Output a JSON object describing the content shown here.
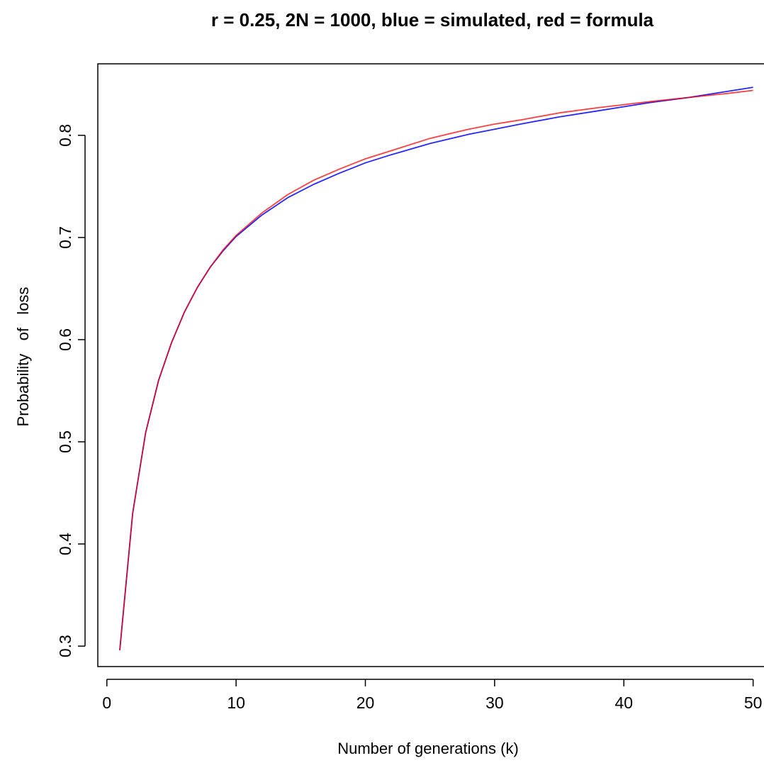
{
  "chart_data": {
    "type": "line",
    "title": "r = 0.25, 2N = 1000, blue = simulated, red = formula",
    "xlabel": "Number of generations (k)",
    "ylabel": "Probability   of   loss",
    "xlim": [
      -0.7,
      51.5
    ],
    "ylim": [
      0.28,
      0.87
    ],
    "x_ticks": [
      0,
      10,
      20,
      30,
      40,
      50
    ],
    "x_tick_labels": [
      "0",
      "10",
      "20",
      "30",
      "40",
      "50"
    ],
    "y_ticks": [
      0.3,
      0.4,
      0.5,
      0.6,
      0.7,
      0.8
    ],
    "y_tick_labels": [
      "0.3",
      "0.4",
      "0.5",
      "0.6",
      "0.7",
      "0.8"
    ],
    "grid": false,
    "legend": "none",
    "series": [
      {
        "color": "#0000ff",
        "x": [
          1,
          2,
          3,
          4,
          5,
          6,
          7,
          8,
          9,
          10,
          12,
          14,
          16,
          18,
          20,
          22,
          25,
          28,
          30,
          32,
          35,
          38,
          40,
          42,
          45,
          48,
          50
        ],
        "y": [
          0.296,
          0.43,
          0.509,
          0.56,
          0.597,
          0.627,
          0.651,
          0.671,
          0.687,
          0.701,
          0.722,
          0.739,
          0.752,
          0.763,
          0.773,
          0.781,
          0.792,
          0.801,
          0.806,
          0.811,
          0.818,
          0.824,
          0.828,
          0.832,
          0.837,
          0.843,
          0.847
        ]
      },
      {
        "color": "#ff0000",
        "x": [
          1,
          2,
          3,
          4,
          5,
          6,
          7,
          8,
          9,
          10,
          12,
          14,
          16,
          18,
          20,
          22,
          25,
          28,
          30,
          32,
          35,
          38,
          40,
          42,
          45,
          48,
          50
        ],
        "y": [
          0.296,
          0.43,
          0.509,
          0.56,
          0.597,
          0.627,
          0.651,
          0.671,
          0.688,
          0.702,
          0.724,
          0.742,
          0.756,
          0.767,
          0.777,
          0.785,
          0.797,
          0.806,
          0.811,
          0.815,
          0.822,
          0.827,
          0.83,
          0.833,
          0.837,
          0.841,
          0.844
        ]
      }
    ]
  }
}
